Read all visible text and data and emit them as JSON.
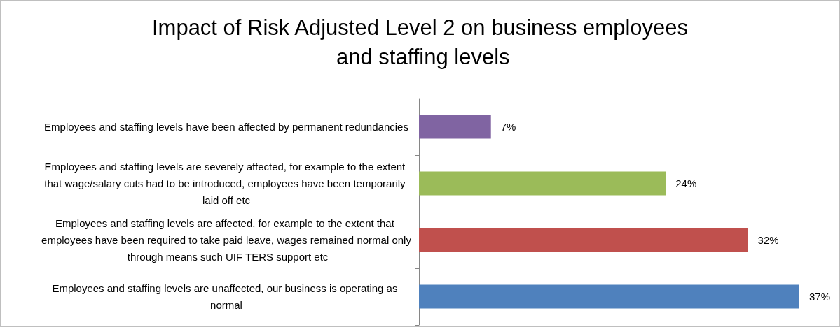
{
  "chart_data": {
    "type": "bar",
    "orientation": "horizontal",
    "title": "Impact of Risk Adjusted Level 2 on business employees and staffing levels",
    "categories": [
      "Employees and staffing levels have been affected by permanent redundancies",
      "Employees and staffing levels are severely affected, for example to the extent that wage/salary cuts had to be introduced, employees have been temporarily laid off etc",
      "Employees and staffing levels are affected, for example to the extent that employees have been required to take paid leave, wages remained normal only through means such UIF TERS support etc",
      "Employees and staffing levels are unaffected, our business is operating as normal"
    ],
    "values": [
      7,
      24,
      32,
      37
    ],
    "colors": [
      "#8064a2",
      "#9bbb59",
      "#c0504d",
      "#4f81bd"
    ],
    "value_labels": [
      "7%",
      "24%",
      "32%",
      "37%"
    ],
    "tick_labels": "y",
    "grid": false,
    "legend": false
  }
}
